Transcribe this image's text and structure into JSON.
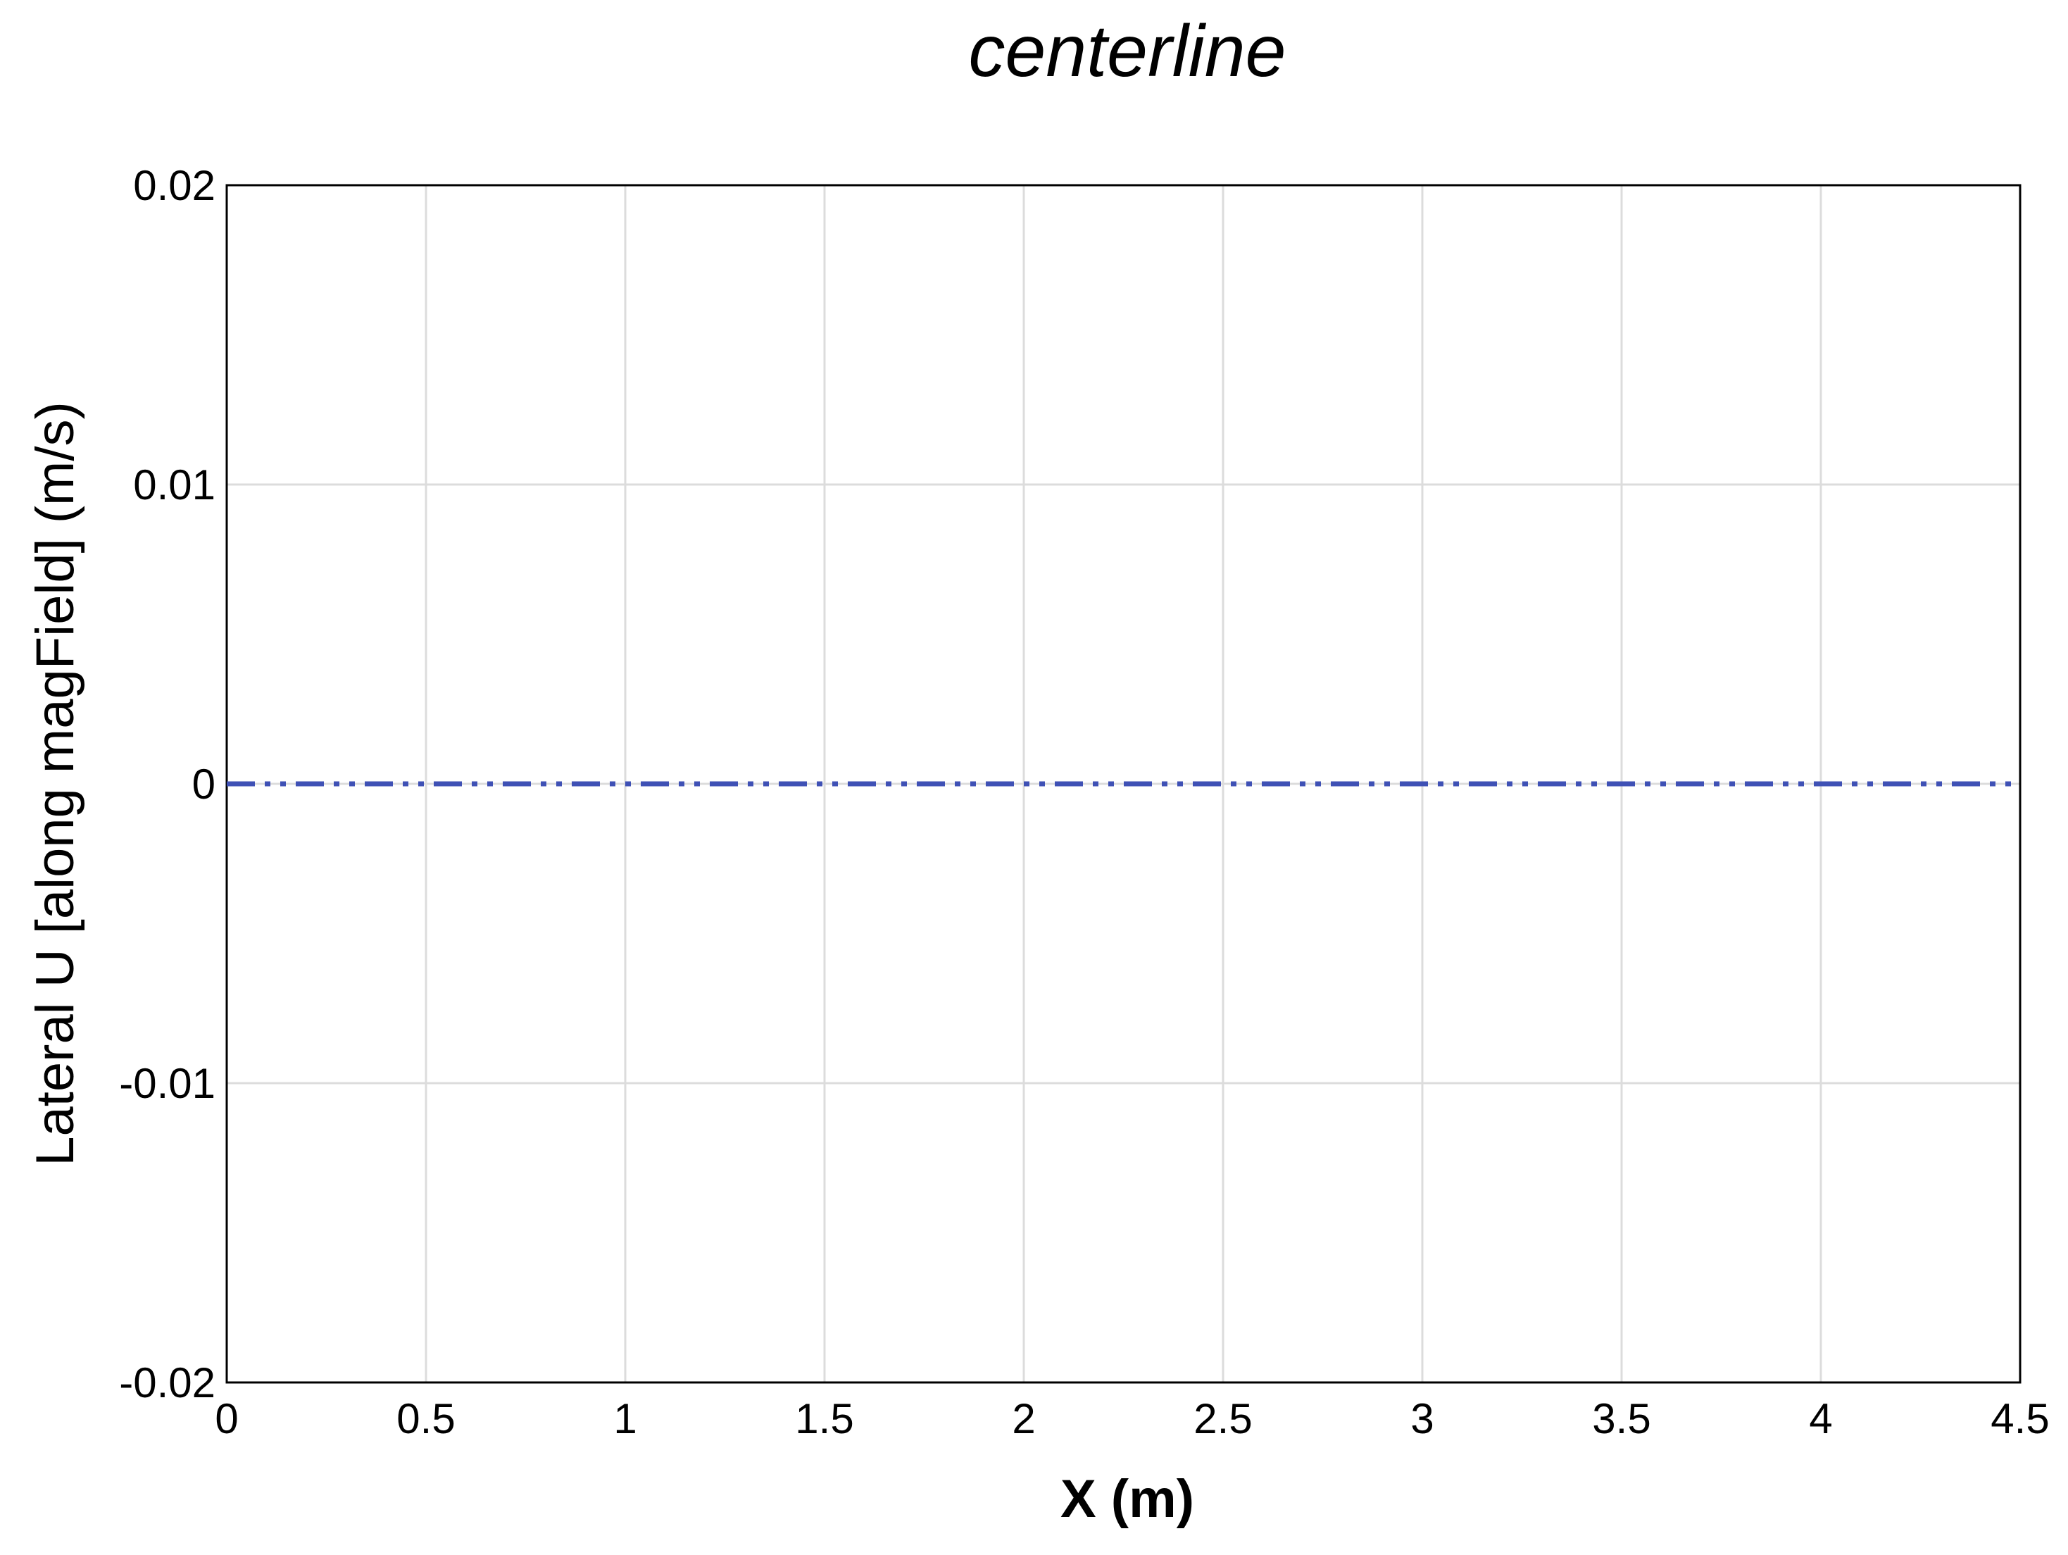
{
  "chart_data": {
    "type": "line",
    "title": "centerline",
    "xlabel": "X (m)",
    "ylabel": "Lateral U [along magField] (m/s)",
    "xlim": [
      0,
      4.5
    ],
    "ylim": [
      -0.02,
      0.02
    ],
    "x_ticks": [
      0,
      0.5,
      1,
      1.5,
      2,
      2.5,
      3,
      3.5,
      4,
      4.5
    ],
    "x_tick_labels": [
      "0",
      "0.5",
      "1",
      "1.5",
      "2",
      "2.5",
      "3",
      "3.5",
      "4",
      "4.5"
    ],
    "y_ticks": [
      -0.02,
      -0.01,
      0,
      0.01,
      0.02
    ],
    "y_tick_labels": [
      "-0.02",
      "-0.01",
      "0",
      "0.01",
      "0.02"
    ],
    "grid": true,
    "series": [
      {
        "x": [
          0,
          0.5,
          1,
          1.5,
          2,
          2.5,
          3,
          3.5,
          4,
          4.5
        ],
        "y": [
          0,
          0,
          0,
          0,
          0,
          0,
          0,
          0,
          0,
          0
        ],
        "color": "#3f51b5",
        "line_style": "dash-dot-dot"
      }
    ]
  }
}
